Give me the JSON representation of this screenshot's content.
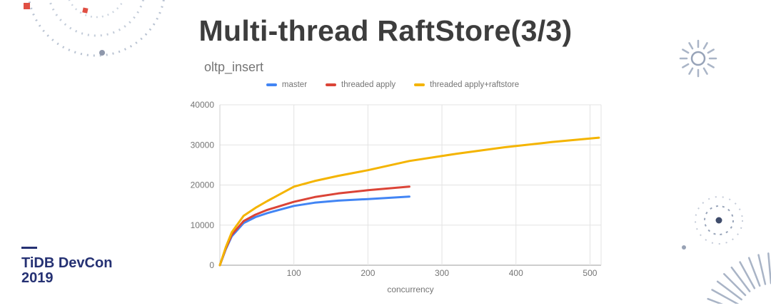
{
  "slide": {
    "title": "Multi-thread RaftStore(3/3)",
    "footer_logo": {
      "line1": "TiDB DevCon",
      "line2": "2019",
      "color": "#253173"
    }
  },
  "chart_data": {
    "type": "line",
    "title": "oltp_insert",
    "xlabel": "concurrency",
    "ylabel": "",
    "xlim": [
      0,
      515
    ],
    "ylim": [
      0,
      40000
    ],
    "xticks": [
      100,
      200,
      300,
      400,
      500
    ],
    "yticks": [
      0,
      10000,
      20000,
      30000,
      40000
    ],
    "grid": true,
    "legend_position": "top",
    "series": [
      {
        "name": "master",
        "color": "#4285f4",
        "points": [
          [
            0,
            0
          ],
          [
            8,
            4000
          ],
          [
            16,
            7200
          ],
          [
            32,
            10500
          ],
          [
            48,
            12000
          ],
          [
            64,
            13000
          ],
          [
            100,
            14800
          ],
          [
            128,
            15600
          ],
          [
            160,
            16100
          ],
          [
            200,
            16500
          ],
          [
            256,
            17100
          ]
        ]
      },
      {
        "name": "threaded apply",
        "color": "#db4437",
        "points": [
          [
            0,
            0
          ],
          [
            8,
            4200
          ],
          [
            16,
            7600
          ],
          [
            32,
            11000
          ],
          [
            48,
            12600
          ],
          [
            64,
            13800
          ],
          [
            100,
            15800
          ],
          [
            128,
            17000
          ],
          [
            160,
            17900
          ],
          [
            200,
            18700
          ],
          [
            256,
            19600
          ]
        ]
      },
      {
        "name": "threaded apply+raftstore",
        "color": "#f4b400",
        "points": [
          [
            0,
            0
          ],
          [
            8,
            4500
          ],
          [
            16,
            8200
          ],
          [
            32,
            12300
          ],
          [
            48,
            14300
          ],
          [
            64,
            16000
          ],
          [
            100,
            19600
          ],
          [
            128,
            21000
          ],
          [
            160,
            22300
          ],
          [
            200,
            23700
          ],
          [
            256,
            26000
          ],
          [
            320,
            27800
          ],
          [
            384,
            29400
          ],
          [
            448,
            30700
          ],
          [
            512,
            31800
          ]
        ]
      }
    ]
  }
}
